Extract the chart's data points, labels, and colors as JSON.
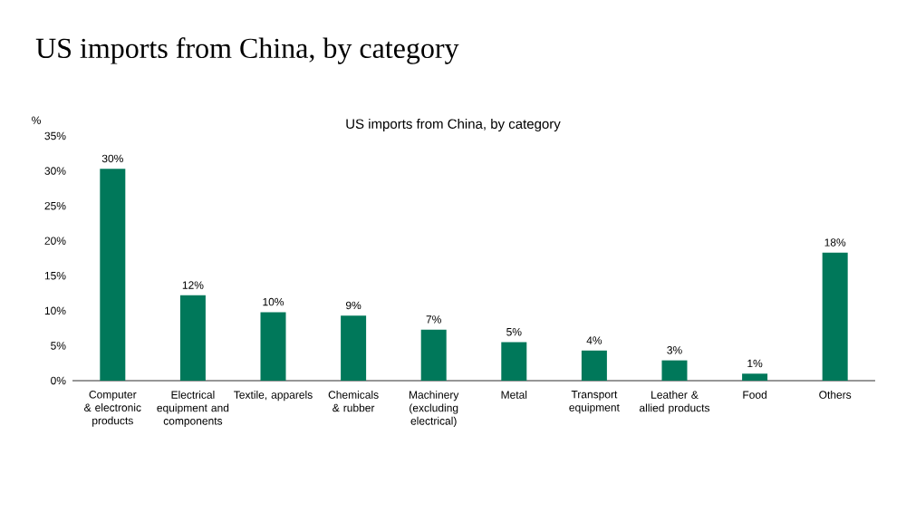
{
  "chart_data": {
    "type": "bar",
    "title": "US imports from China, by category",
    "subtitle": "US imports from China, by category",
    "ylabel": "%",
    "categories": [
      "Computer & electronic products",
      "Electrical equipment and components",
      "Textile, apparels",
      "Chemicals & rubber",
      "Machinery (excluding electrical)",
      "Metal",
      "Transport equipment",
      "Leather & allied products",
      "Food",
      "Others"
    ],
    "values": [
      30.3,
      12.2,
      9.8,
      9.3,
      7.3,
      5.5,
      4.3,
      2.9,
      1.0,
      18.3
    ],
    "value_labels": [
      "30%",
      "12%",
      "10%",
      "9%",
      "7%",
      "5%",
      "4%",
      "3%",
      "1%",
      "18%"
    ],
    "color": "#00785a",
    "ylim": [
      0,
      35
    ],
    "yticks": [
      {
        "value": 0,
        "label": "0%"
      },
      {
        "value": 5,
        "label": "5%"
      },
      {
        "value": 10,
        "label": "10%"
      },
      {
        "value": 15,
        "label": "15%"
      },
      {
        "value": 20,
        "label": "20%"
      },
      {
        "value": 25,
        "label": "25%"
      },
      {
        "value": 30,
        "label": "30%"
      },
      {
        "value": 35,
        "label": "35%"
      }
    ],
    "grid": false
  }
}
